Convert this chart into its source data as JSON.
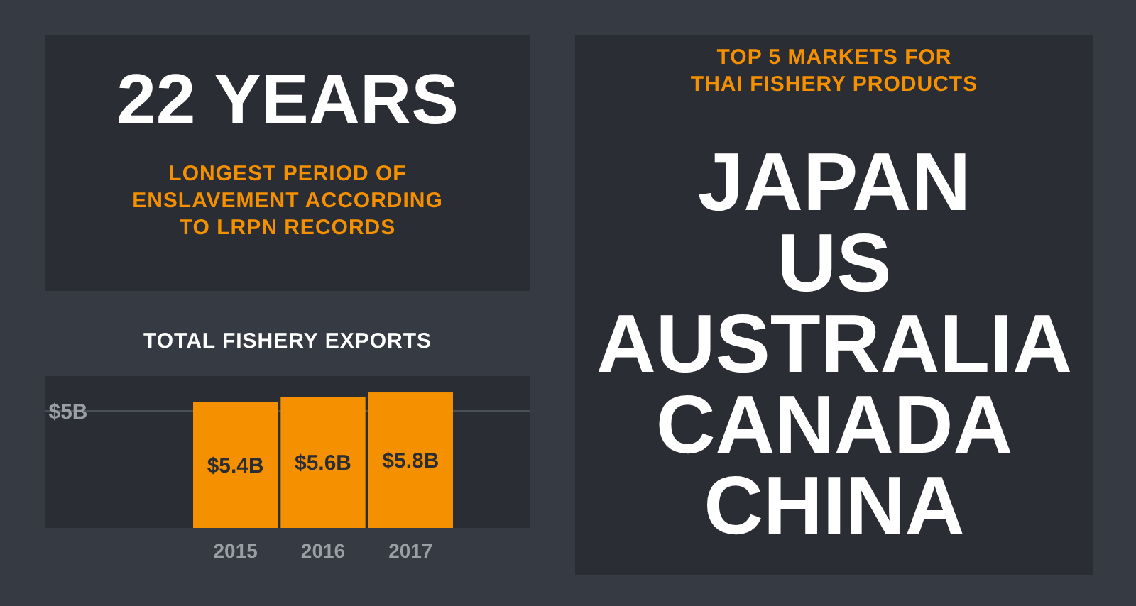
{
  "chart_data": [
    {
      "type": "other",
      "title": "22 YEARS",
      "subtitle": "LONGEST PERIOD OF ENSLAVEMENT ACCORDING TO LRPN RECORDS"
    },
    {
      "type": "bar",
      "title": "TOTAL FISHERY EXPORTS",
      "categories": [
        "2015",
        "2016",
        "2017"
      ],
      "values": [
        5.4,
        5.6,
        5.8
      ],
      "color": "#f59100",
      "ylim": [
        0,
        6.5
      ],
      "yticks": [
        {
          "value": 5,
          "label": "$5B"
        }
      ],
      "grid": "y",
      "data_labels": true,
      "value_labels": [
        "$5.4B",
        "$5.6B",
        "$5.8B"
      ]
    },
    {
      "type": "other",
      "subtitle": "TOP 5 MARKETS FOR THAI FISHERY PRODUCTS",
      "annotations": [
        "JAPAN",
        "US",
        "AUSTRALIA",
        "CANADA",
        "CHINA"
      ]
    }
  ]
}
